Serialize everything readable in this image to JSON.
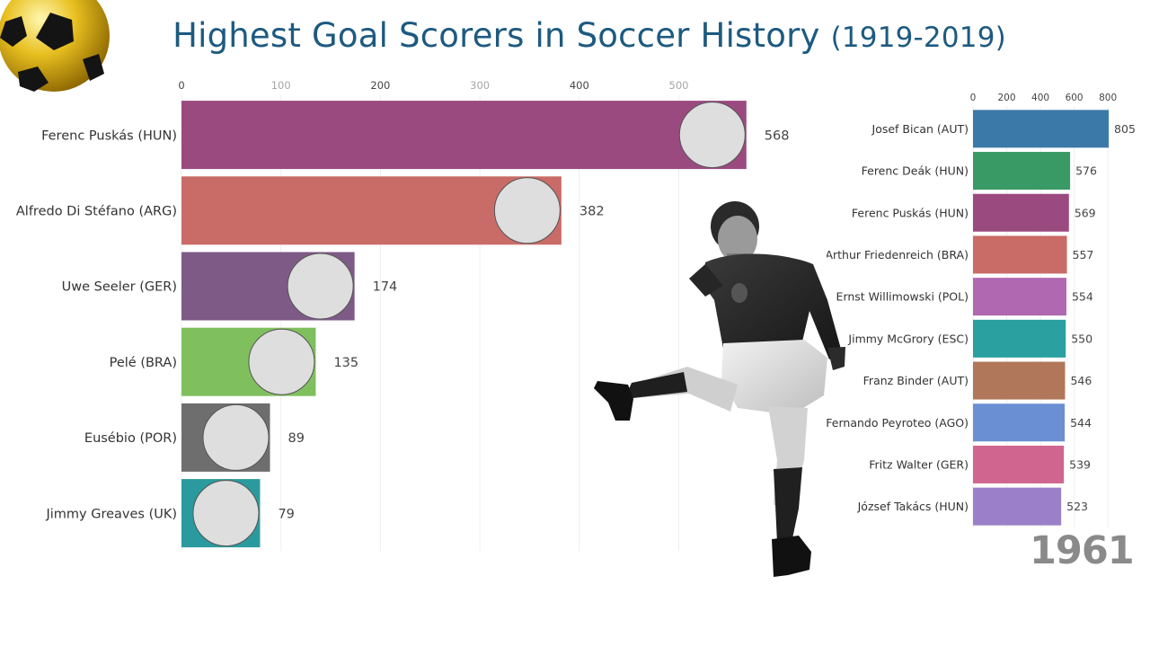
{
  "title": "Highest Goal Scorers in Soccer History",
  "title_range": "(1919-2019)",
  "year_label": "1961",
  "chart_data": [
    {
      "type": "bar",
      "orientation": "horizontal",
      "categories": [
        "Ferenc Puskás (HUN)",
        "Alfredo Di Stéfano (ARG)",
        "Uwe Seeler (GER)",
        "Pelé (BRA)",
        "Eusébio (POR)",
        "Jimmy Greaves (UK)"
      ],
      "values": [
        568,
        382,
        174,
        135,
        89,
        79
      ],
      "colors": [
        "#9b4a80",
        "#c96c68",
        "#7e5a86",
        "#7fbf5d",
        "#6e6e6e",
        "#2a9a9e"
      ],
      "xticks": [
        0,
        100,
        200,
        300,
        400,
        500
      ],
      "xlim": [
        0,
        570
      ],
      "axis_position": "top",
      "grid": true
    },
    {
      "type": "bar",
      "orientation": "horizontal",
      "categories": [
        "Josef Bican (AUT)",
        "Ferenc Deák (HUN)",
        "Ferenc Puskás (HUN)",
        "Arthur Friedenreich (BRA)",
        "Ernst Willimowski (POL)",
        "Jimmy McGrory (ESC)",
        "Franz Binder (AUT)",
        "Fernando Peyroteo (AGO)",
        "Fritz Walter (GER)",
        "József Takács (HUN)"
      ],
      "values": [
        805,
        576,
        569,
        557,
        554,
        550,
        546,
        544,
        539,
        523
      ],
      "colors": [
        "#3b7aa8",
        "#3a9a65",
        "#9b4a80",
        "#c96c68",
        "#b068b0",
        "#2aa0a0",
        "#b0775a",
        "#6a8fd2",
        "#d06690",
        "#9b80c9"
      ],
      "xticks": [
        0,
        200,
        400,
        600,
        800
      ],
      "xlim": [
        0,
        810
      ],
      "axis_position": "top",
      "grid": true
    }
  ]
}
